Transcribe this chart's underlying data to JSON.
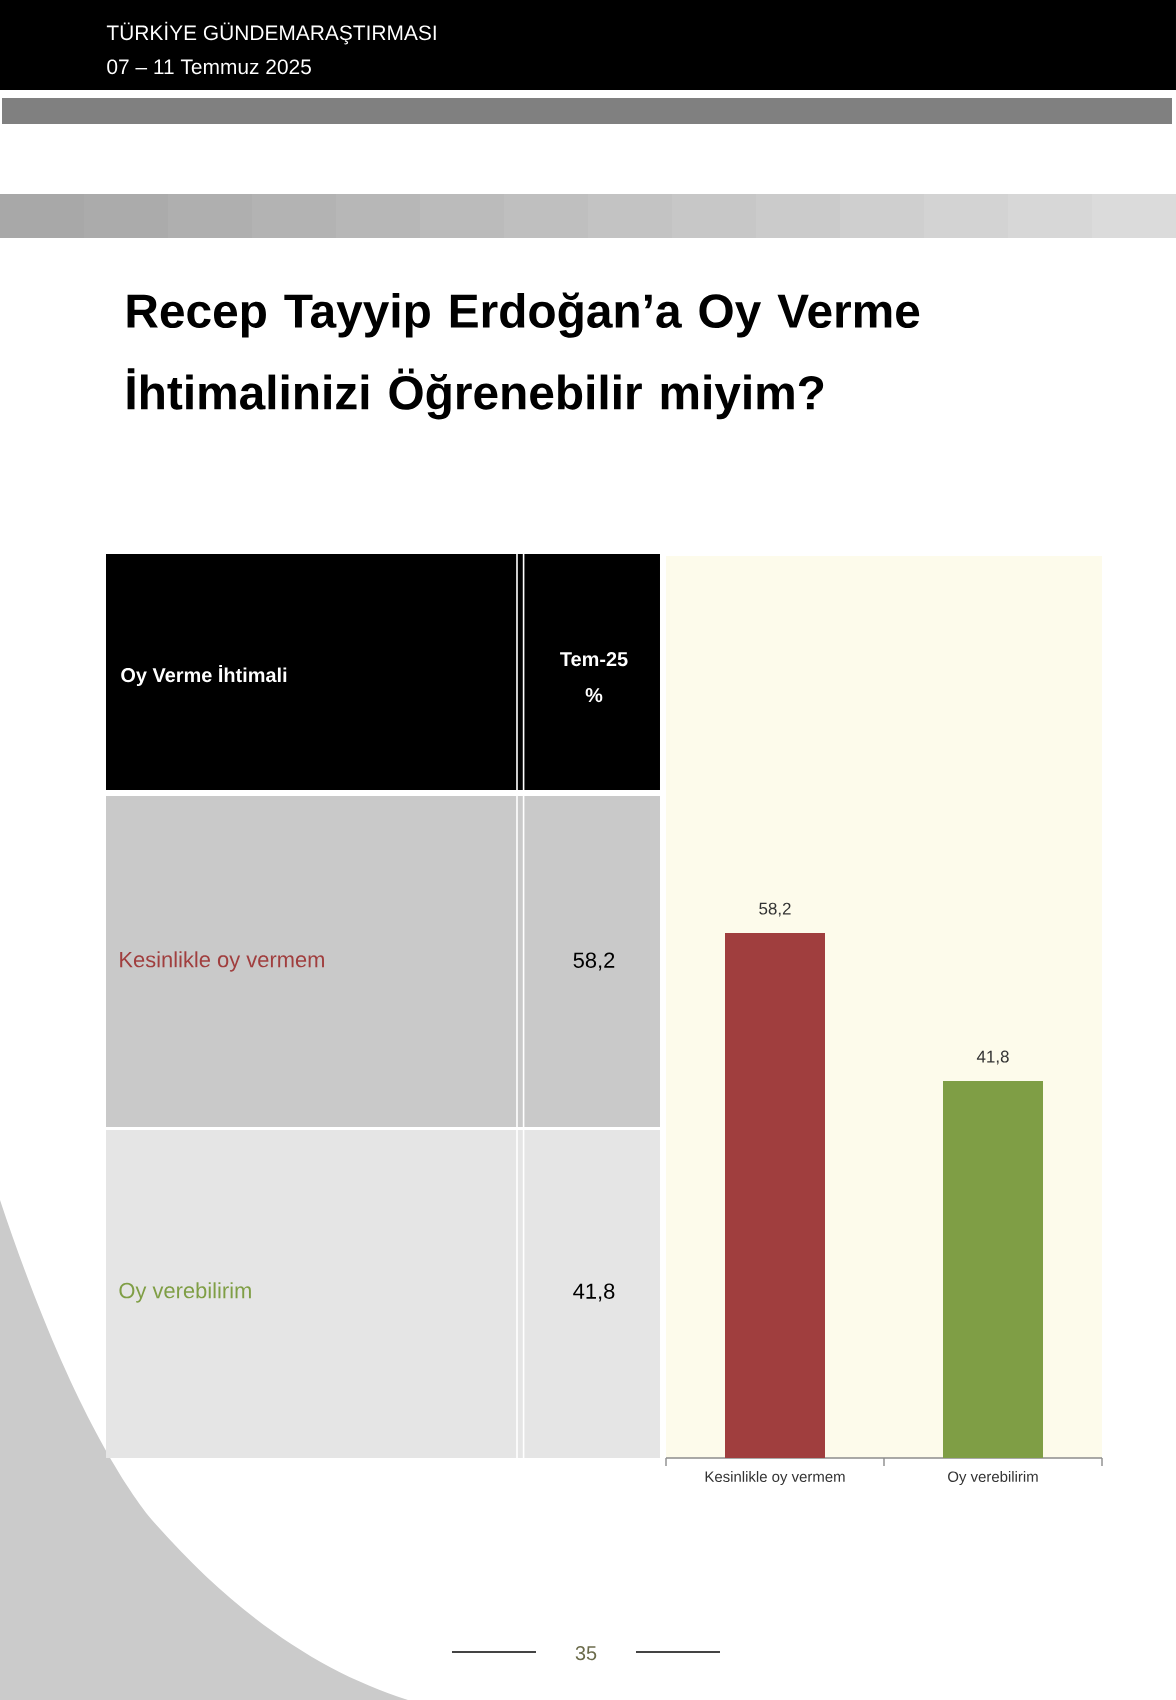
{
  "chart_data": {
    "type": "bar",
    "title": "Recep Tayyip Erdoğan’a Oy Verme İhtimalinizi Öğrenebilir miyim?",
    "annotations": [
      "TÜRKİYE GÜNDEMARAŞTIRMASI",
      "07 – 11 Temmuz 2025",
      "Oy Verme İhtimali",
      "Tem-25",
      "%",
      "35"
    ],
    "categories": [
      "Kesinlikle oy vermem",
      "Oy verebilirim"
    ],
    "values": [
      58.2,
      41.8
    ],
    "value_labels": [
      "58,2",
      "41,8"
    ],
    "colors": [
      "#a03e3e",
      "#7f9e45"
    ],
    "ylim": [
      0,
      100
    ]
  }
}
